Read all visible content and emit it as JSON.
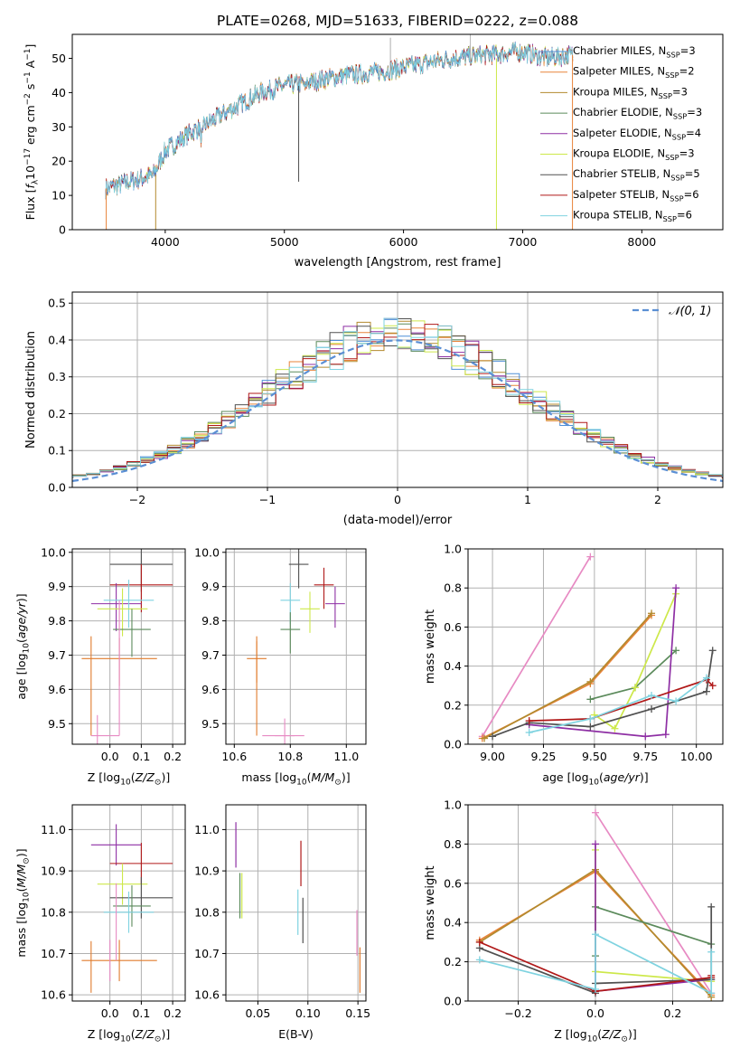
{
  "figure_title": "PLATE=0268, MJD=51633, FIBERID=0222, z=0.088",
  "colors": {
    "Chabrier MILES": "#4f8fd7",
    "Salpeter MILES": "#e8833a",
    "Kroupa MILES": "#b38a2e",
    "Chabrier ELODIE": "#5b8a5b",
    "Salpeter ELODIE": "#8e2fa4",
    "Kroupa ELODIE": "#cde84a",
    "Chabrier STELIB": "#505050",
    "Salpeter STELIB": "#b01818",
    "Kroupa STELIB": "#7fd3e0",
    "Pink": "#e78ac3",
    "Orange": "#e07b2c",
    "Normal": "#5b8fd4",
    "grid": "#b0b0b0"
  },
  "chart_data": [
    {
      "id": "spectrum",
      "type": "line",
      "title": "PLATE=0268, MJD=51633, FIBERID=0222, z=0.088",
      "xlabel": "wavelength [Angstrom, rest frame]",
      "ylabel": "Flux [fλ10⁻¹⁷ erg cm⁻² s⁻¹ A⁻¹]",
      "xlim": [
        3220,
        8680
      ],
      "ylim": [
        0,
        57
      ],
      "xticks": [
        4000,
        5000,
        6000,
        7000,
        8000
      ],
      "yticks": [
        0,
        10,
        20,
        30,
        40,
        50
      ],
      "grid": false,
      "legend": "right",
      "legend_entries": [
        {
          "label": "Chabrier MILES, N",
          "sub": "SSP",
          "tail": "=3"
        },
        {
          "label": "Salpeter MILES, N",
          "sub": "SSP",
          "tail": "=2"
        },
        {
          "label": "Kroupa MILES, N",
          "sub": "SSP",
          "tail": "=3"
        },
        {
          "label": "Chabrier ELODIE, N",
          "sub": "SSP",
          "tail": "=3"
        },
        {
          "label": "Salpeter ELODIE, N",
          "sub": "SSP",
          "tail": "=4"
        },
        {
          "label": "Kroupa ELODIE, N",
          "sub": "SSP",
          "tail": "=3"
        },
        {
          "label": "Chabrier STELIB, N",
          "sub": "SSP",
          "tail": "=5"
        },
        {
          "label": "Salpeter STELIB, N",
          "sub": "SSP",
          "tail": "=6"
        },
        {
          "label": "Kroupa STELIB, N",
          "sub": "SSP",
          "tail": "=6"
        }
      ],
      "continuum": [
        [
          3500,
          12
        ],
        [
          3700,
          14
        ],
        [
          3900,
          16
        ],
        [
          4000,
          23
        ],
        [
          4200,
          28
        ],
        [
          4400,
          32
        ],
        [
          4600,
          36
        ],
        [
          4800,
          40
        ],
        [
          5000,
          42
        ],
        [
          5200,
          43
        ],
        [
          5500,
          45
        ],
        [
          5800,
          46
        ],
        [
          6100,
          48
        ],
        [
          6400,
          50
        ],
        [
          6700,
          51
        ],
        [
          7000,
          52
        ],
        [
          7200,
          50
        ],
        [
          7400,
          51
        ]
      ]
    },
    {
      "id": "residuals",
      "type": "histogram",
      "xlabel": "(data-model)/error",
      "ylabel": "Normed distribution",
      "xlim": [
        -2.5,
        2.5
      ],
      "ylim": [
        0,
        0.53
      ],
      "xticks": [
        -2,
        -1,
        0,
        1,
        2
      ],
      "yticks": [
        0.0,
        0.1,
        0.2,
        0.3,
        0.4,
        0.5
      ],
      "grid": true,
      "legend": "top-right",
      "legend_label": "N(0,1)"
    },
    {
      "id": "age_vs_Z",
      "type": "errorbar",
      "xlabel": "Z [log10(Z/Z☉)]",
      "ylabel": "age [log10(age/yr)]",
      "xlim": [
        -0.12,
        0.24
      ],
      "ylim": [
        9.44,
        10.01
      ],
      "xticks": [
        0.0,
        0.1,
        0.2
      ],
      "yticks": [
        9.5,
        9.6,
        9.7,
        9.8,
        9.9,
        10.0
      ],
      "grid": true,
      "points": [
        {
          "model": "Chabrier STELIB",
          "x": 0.1,
          "xerr": 0.1,
          "y": 9.965,
          "yerr": 0.0
        },
        {
          "model": "Salpeter STELIB",
          "x": 0.1,
          "xerr": 0.1,
          "y": 9.905,
          "yerr": 0.0
        },
        {
          "model": "Salpeter ELODIE",
          "x": 0.02,
          "xerr": 0.08,
          "y": 9.85,
          "yerr": 0.0
        },
        {
          "model": "Kroupa STELIB",
          "x": 0.06,
          "xerr": 0.08,
          "y": 9.86,
          "yerr": 0.0
        },
        {
          "model": "Kroupa ELODIE",
          "x": 0.04,
          "xerr": 0.08,
          "y": 9.835,
          "yerr": 0.0
        },
        {
          "model": "Chabrier ELODIE",
          "x": 0.07,
          "xerr": 0.06,
          "y": 9.775,
          "yerr": 0.0
        },
        {
          "model": "Orange",
          "x": 0.03,
          "xerr": 0.12,
          "y": 9.69,
          "yerr": 0.0
        },
        {
          "model": "Pink",
          "x": -0.04,
          "xerr": 0.0,
          "y": 9.465,
          "yerr": 0.0
        }
      ]
    },
    {
      "id": "age_vs_mass",
      "type": "errorbar",
      "xlabel": "mass [log10(M/M☉)]",
      "ylabel": "",
      "xlim": [
        10.57,
        11.07
      ],
      "ylim": [
        9.44,
        10.01
      ],
      "xticks": [
        10.6,
        10.8,
        11.0
      ],
      "yticks": [
        9.5,
        9.6,
        9.7,
        9.8,
        9.9,
        10.0
      ],
      "grid": true,
      "points": [
        {
          "model": "Chabrier STELIB",
          "x": 10.83,
          "xerr": 0.0,
          "y": 9.965,
          "yerr": 0.0
        },
        {
          "model": "Salpeter STELIB",
          "x": 10.92,
          "xerr": 0.0,
          "y": 9.905,
          "yerr": 0.0
        },
        {
          "model": "Salpeter ELODIE",
          "x": 10.96,
          "xerr": 0.0,
          "y": 9.85,
          "yerr": 0.0
        },
        {
          "model": "Kroupa STELIB",
          "x": 10.8,
          "xerr": 0.0,
          "y": 9.86,
          "yerr": 0.0
        },
        {
          "model": "Kroupa ELODIE",
          "x": 10.87,
          "xerr": 0.0,
          "y": 9.835,
          "yerr": 0.0
        },
        {
          "model": "Chabrier ELODIE",
          "x": 10.8,
          "xerr": 0.0,
          "y": 9.775,
          "yerr": 0.0
        },
        {
          "model": "Orange",
          "x": 10.68,
          "xerr": 0.0,
          "y": 9.69,
          "yerr": 0.0
        },
        {
          "model": "Pink",
          "x": 10.78,
          "xerr": 0.0,
          "y": 9.465,
          "yerr": 0.0
        }
      ]
    },
    {
      "id": "massweight_vs_age",
      "type": "line",
      "xlabel": "age [log10(age/yr)]",
      "ylabel": "mass weight",
      "xlim": [
        8.88,
        10.13
      ],
      "ylim": [
        0,
        1.0
      ],
      "xticks": [
        9.0,
        9.25,
        9.5,
        9.75,
        10.0
      ],
      "yticks": [
        0.0,
        0.2,
        0.4,
        0.6,
        0.8,
        1.0
      ],
      "grid": true,
      "series": [
        {
          "model": "Pink",
          "x": [
            8.95,
            9.48
          ],
          "y": [
            0.04,
            0.96
          ]
        },
        {
          "model": "Salpeter MILES",
          "x": [
            8.95,
            9.48,
            9.78
          ],
          "y": [
            0.03,
            0.31,
            0.66
          ]
        },
        {
          "model": "Kroupa MILES",
          "x": [
            8.96,
            9.48,
            9.78
          ],
          "y": [
            0.03,
            0.32,
            0.67
          ]
        },
        {
          "model": "Chabrier ELODIE",
          "x": [
            9.48,
            9.7,
            9.9
          ],
          "y": [
            0.23,
            0.29,
            0.48
          ]
        },
        {
          "model": "Kroupa ELODIE",
          "x": [
            9.5,
            9.6,
            9.7,
            9.9
          ],
          "y": [
            0.15,
            0.08,
            0.29,
            0.77
          ]
        },
        {
          "model": "Salpeter ELODIE",
          "x": [
            9.18,
            9.75,
            9.85,
            9.9
          ],
          "y": [
            0.1,
            0.04,
            0.05,
            0.8
          ]
        },
        {
          "model": "Chabrier STELIB",
          "x": [
            9.0,
            9.18,
            9.48,
            9.78,
            10.05,
            10.08
          ],
          "y": [
            0.04,
            0.11,
            0.09,
            0.18,
            0.27,
            0.48
          ]
        },
        {
          "model": "Salpeter STELIB",
          "x": [
            9.18,
            9.48,
            10.05,
            10.08
          ],
          "y": [
            0.12,
            0.13,
            0.33,
            0.3
          ]
        },
        {
          "model": "Kroupa STELIB",
          "x": [
            9.18,
            9.48,
            9.78,
            9.9,
            10.05
          ],
          "y": [
            0.06,
            0.13,
            0.25,
            0.22,
            0.34
          ]
        }
      ]
    },
    {
      "id": "mass_vs_Z",
      "type": "errorbar",
      "xlabel": "Z [log10(Z/Z☉)]",
      "ylabel": "mass [log10(M/M☉)]",
      "xlim": [
        -0.12,
        0.24
      ],
      "ylim": [
        10.585,
        11.06
      ],
      "xticks": [
        0.0,
        0.1,
        0.2
      ],
      "yticks": [
        10.6,
        10.7,
        10.8,
        10.9,
        11.0
      ],
      "grid": true,
      "points": [
        {
          "model": "Salpeter ELODIE",
          "x": 0.02,
          "xerr": 0.08,
          "y": 10.963,
          "yerr": 0.0
        },
        {
          "model": "Salpeter STELIB",
          "x": 0.1,
          "xerr": 0.1,
          "y": 10.918,
          "yerr": 0.0
        },
        {
          "model": "Kroupa ELODIE",
          "x": 0.04,
          "xerr": 0.08,
          "y": 10.868,
          "yerr": 0.0
        },
        {
          "model": "Chabrier STELIB",
          "x": 0.1,
          "xerr": 0.1,
          "y": 10.835,
          "yerr": 0.0
        },
        {
          "model": "Chabrier ELODIE",
          "x": 0.07,
          "xerr": 0.06,
          "y": 10.815,
          "yerr": 0.0
        },
        {
          "model": "Kroupa STELIB",
          "x": 0.06,
          "xerr": 0.08,
          "y": 10.8,
          "yerr": 0.0
        },
        {
          "model": "Orange",
          "x": 0.03,
          "xerr": 0.12,
          "y": 10.683,
          "yerr": 0.0
        },
        {
          "model": "Pink",
          "x": 0.0,
          "xerr": 0.0,
          "y": 10.683,
          "yerr": 0.0
        }
      ]
    },
    {
      "id": "mass_vs_EBV",
      "type": "errorbar",
      "xlabel": "E(B-V)",
      "ylabel": "",
      "xlim": [
        0.018,
        0.158
      ],
      "ylim": [
        10.585,
        11.06
      ],
      "xticks": [
        0.05,
        0.1,
        0.15
      ],
      "yticks": [
        10.6,
        10.7,
        10.8,
        10.9,
        11.0
      ],
      "grid": true,
      "points": [
        {
          "model": "Salpeter ELODIE",
          "x": 0.028,
          "xerr": 0.0,
          "y": 10.963,
          "yerr": 0.0
        },
        {
          "model": "Chabrier ELODIE",
          "x": 0.032,
          "xerr": 0.0,
          "y": 10.84,
          "yerr": 0.0
        },
        {
          "model": "Kroupa ELODIE",
          "x": 0.034,
          "xerr": 0.0,
          "y": 10.84,
          "yerr": 0.0
        },
        {
          "model": "Salpeter STELIB",
          "x": 0.093,
          "xerr": 0.0,
          "y": 10.918,
          "yerr": 0.0
        },
        {
          "model": "Kroupa STELIB",
          "x": 0.09,
          "xerr": 0.0,
          "y": 10.8,
          "yerr": 0.0
        },
        {
          "model": "Chabrier STELIB",
          "x": 0.095,
          "xerr": 0.0,
          "y": 10.78,
          "yerr": 0.0
        },
        {
          "model": "Pink",
          "x": 0.149,
          "xerr": 0.0,
          "y": 10.75,
          "yerr": 0.0
        },
        {
          "model": "Orange",
          "x": 0.152,
          "xerr": 0.0,
          "y": 10.66,
          "yerr": 0.0
        }
      ]
    },
    {
      "id": "massweight_vs_Z",
      "type": "line",
      "xlabel": "Z [log10(Z/Z☉)]",
      "ylabel": "mass weight",
      "xlim": [
        -0.33,
        0.33
      ],
      "ylim": [
        0,
        1.0
      ],
      "xticks": [
        -0.2,
        0.0,
        0.2
      ],
      "yticks": [
        0.0,
        0.2,
        0.4,
        0.6,
        0.8,
        1.0
      ],
      "grid": true,
      "series": [
        {
          "model": "Pink",
          "x": [
            0.0,
            0.3
          ],
          "y": [
            0.96,
            0.04
          ]
        },
        {
          "model": "Salpeter MILES",
          "x": [
            -0.3,
            0.0,
            0.3
          ],
          "y": [
            0.31,
            0.66,
            0.03
          ]
        },
        {
          "model": "Kroupa MILES",
          "x": [
            -0.3,
            0.0,
            0.3
          ],
          "y": [
            0.3,
            0.67,
            0.02
          ]
        },
        {
          "model": "Chabrier ELODIE",
          "x": [
            0.0,
            0.0,
            0.3
          ],
          "y": [
            0.23,
            0.48,
            0.29
          ]
        },
        {
          "model": "Kroupa ELODIE",
          "x": [
            0.0,
            0.0,
            0.3
          ],
          "y": [
            0.77,
            0.15,
            0.1
          ]
        },
        {
          "model": "Salpeter ELODIE",
          "x": [
            0.0,
            0.0,
            0.3
          ],
          "y": [
            0.8,
            0.05,
            0.11
          ]
        },
        {
          "model": "Chabrier STELIB",
          "x": [
            -0.3,
            0.0,
            0.0,
            0.3,
            0.3
          ],
          "y": [
            0.27,
            0.04,
            0.09,
            0.11,
            0.48
          ]
        },
        {
          "model": "Salpeter STELIB",
          "x": [
            -0.3,
            0.0,
            0.3,
            0.3
          ],
          "y": [
            0.3,
            0.05,
            0.12,
            0.13
          ]
        },
        {
          "model": "Kroupa STELIB",
          "x": [
            -0.3,
            0.0,
            0.0,
            0.3,
            0.3
          ],
          "y": [
            0.21,
            0.06,
            0.34,
            0.04,
            0.25
          ]
        }
      ]
    }
  ]
}
